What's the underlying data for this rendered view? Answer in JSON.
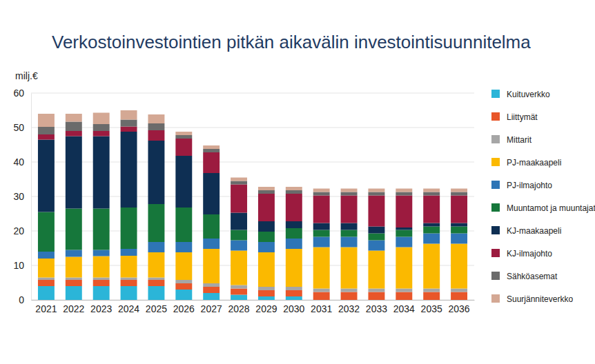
{
  "chart_data": {
    "type": "bar",
    "stacked": true,
    "title": "Verkostoinvestointien pitkän aikavälin investointisuunnitelma",
    "y_label": "milj.€",
    "categories": [
      "2021",
      "2022",
      "2023",
      "2024",
      "2025",
      "2026",
      "2027",
      "2028",
      "2029",
      "2030",
      "2031",
      "2032",
      "2033",
      "2034",
      "2035",
      "2036"
    ],
    "ylim": [
      0,
      60
    ],
    "yticks": [
      0,
      10,
      20,
      30,
      40,
      50,
      60
    ],
    "grid": true,
    "legend": "right",
    "series": [
      {
        "name": "Kuituverkko",
        "color": "#2bb5d8",
        "values": [
          4,
          4,
          4,
          4,
          4,
          3,
          2,
          1.5,
          1,
          1,
          0,
          0,
          0,
          0,
          0,
          0
        ]
      },
      {
        "name": "Liittymät",
        "color": "#e8562a",
        "values": [
          1.8,
          1.8,
          1.8,
          1.8,
          1.8,
          1.8,
          1.8,
          1.8,
          1.8,
          1.8,
          2.3,
          2.3,
          2.3,
          2.3,
          2.3,
          2.3
        ]
      },
      {
        "name": "Mittarit",
        "color": "#a6a6a6",
        "values": [
          0.7,
          0.7,
          0.7,
          0.7,
          0.7,
          1,
          1,
          1,
          1,
          1,
          1,
          1,
          1,
          1,
          1,
          1
        ]
      },
      {
        "name": "PJ-maakaapeli",
        "color": "#fbb900",
        "values": [
          5.5,
          6,
          6.2,
          6.3,
          7.3,
          8,
          10,
          10,
          10,
          11,
          12,
          12,
          11,
          12,
          13,
          13
        ]
      },
      {
        "name": "PJ-ilmajohto",
        "color": "#2e75b6",
        "values": [
          2,
          2,
          1.8,
          2,
          3,
          3,
          3,
          3,
          3,
          3,
          3,
          3,
          3,
          3,
          3,
          3
        ]
      },
      {
        "name": "Muuntamot ja muuntajat",
        "color": "#16773b",
        "values": [
          11.5,
          12,
          12,
          12,
          11,
          10,
          7,
          3,
          3,
          3,
          2,
          2,
          2,
          2,
          2,
          2
        ]
      },
      {
        "name": "KJ-maakaapeli",
        "color": "#0e2f53",
        "values": [
          21,
          21,
          21,
          22,
          18.4,
          15,
          12,
          5,
          3,
          2,
          2,
          2,
          2,
          0.7,
          1,
          1
        ]
      },
      {
        "name": "KJ-ilmajohto",
        "color": "#9c1b3f",
        "values": [
          1.5,
          1.5,
          1.5,
          1.5,
          3,
          5,
          6,
          8.2,
          8,
          8,
          8,
          8,
          9,
          9.3,
          8,
          8
        ]
      },
      {
        "name": "Sähköasemat",
        "color": "#6b6b6b",
        "values": [
          2.2,
          2.7,
          2,
          2,
          2,
          1,
          1,
          1,
          1,
          1,
          1,
          1,
          1,
          1,
          1,
          1
        ]
      },
      {
        "name": "Suurjänniteverkko",
        "color": "#d4a894",
        "values": [
          3.8,
          2.3,
          3.3,
          2.7,
          2.6,
          1,
          1,
          1,
          1,
          1,
          1,
          1,
          1,
          1,
          1,
          1
        ]
      }
    ]
  }
}
